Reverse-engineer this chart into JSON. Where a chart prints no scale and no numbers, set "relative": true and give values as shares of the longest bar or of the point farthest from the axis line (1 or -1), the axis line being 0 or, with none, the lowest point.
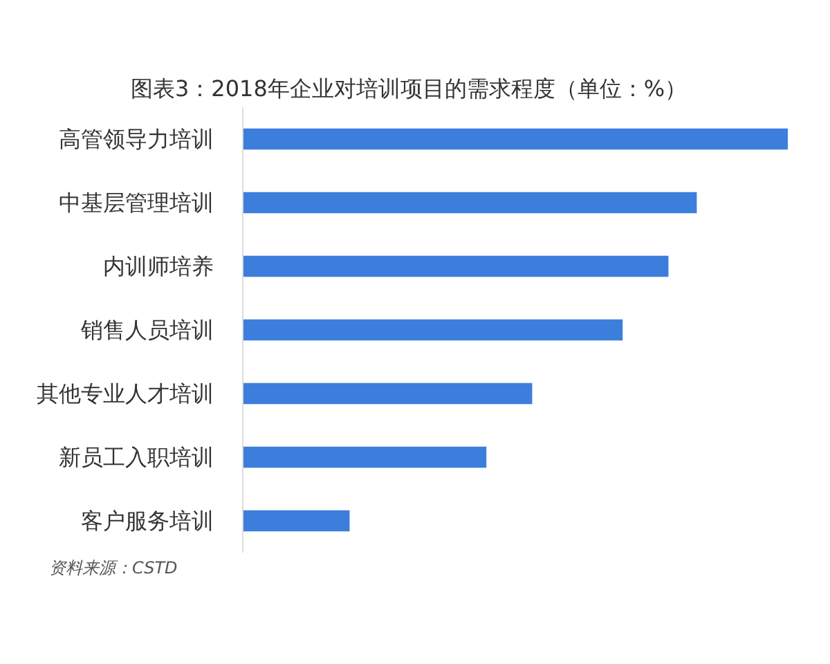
{
  "chart_data": {
    "type": "bar",
    "orientation": "horizontal",
    "relative": true,
    "title": "图表3：2018年企业对培训项目的需求程度（单位：%）",
    "categories": [
      "高管领导力培训",
      "中基层管理培训",
      "内训师培养",
      "销售人员培训",
      "其他专业人才培训",
      "新员工入职培训",
      "客户服务培训"
    ],
    "values": [
      1,
      0.833,
      0.781,
      0.697,
      0.531,
      0.447,
      0.196
    ],
    "color": "#3c7edb",
    "grid": false,
    "annotations": [
      "资料来源：CSTD"
    ]
  }
}
